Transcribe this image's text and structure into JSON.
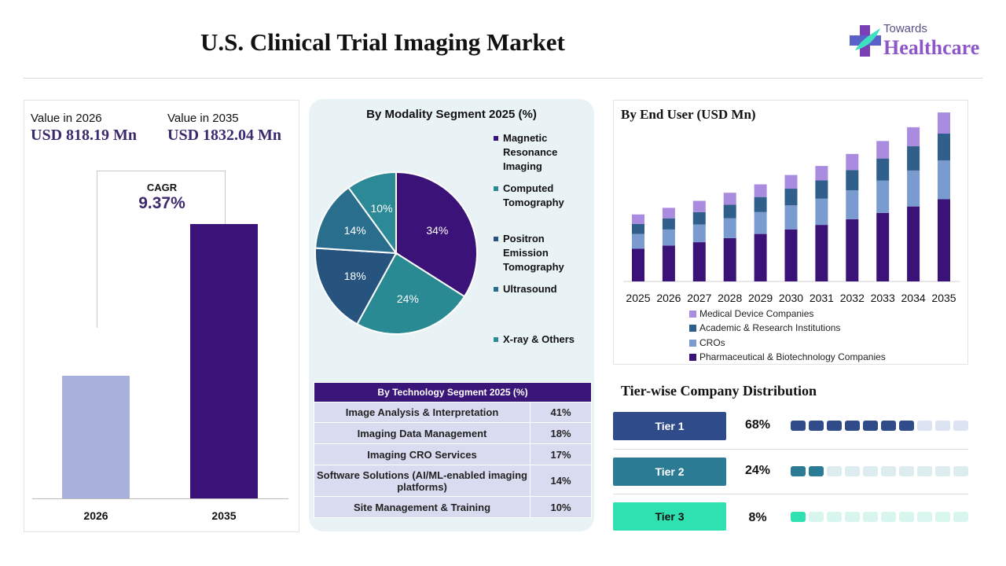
{
  "title": "U.S. Clinical Trial Imaging Market",
  "logo": {
    "small": "Towards",
    "big": "Healthcare"
  },
  "values": {
    "label_2026": "Value in 2026",
    "value_2026": "USD 818.19 Mn",
    "label_2035": "Value in 2035",
    "value_2035": "USD 1832.04 Mn",
    "cagr_label": "CAGR",
    "cagr_value": "9.37%"
  },
  "colors": {
    "bar_2026": "#a7b1dc",
    "bar_2035": "#3b1278",
    "pie": [
      "#3b1278",
      "#2a8a93",
      "#26547f",
      "#2a6e8e",
      "#2c8a96"
    ],
    "stack": {
      "pharma": "#3b1278",
      "cros": "#7a9bd0",
      "academic": "#2f5f8a",
      "device": "#a98be0"
    },
    "tier": [
      "#2f4b8a",
      "#2a7b93",
      "#2fe0b0"
    ],
    "tier_empty": [
      "#dce3f2",
      "#dcecef",
      "#d8f6ee"
    ],
    "table_header": "#3a1678",
    "table_cell": "#d9dcf0"
  },
  "chart_data": [
    {
      "type": "bar",
      "categories": [
        "2026",
        "2035"
      ],
      "values": [
        818.19,
        1832.04
      ],
      "ylim": [
        0,
        2100
      ]
    },
    {
      "type": "pie",
      "title": "By Modality Segment 2025 (%)",
      "labels": [
        "Magnetic Resonance Imaging",
        "Computed Tomography",
        "Positron Emission Tomography",
        "Ultrasound",
        "X-ray & Others"
      ],
      "values": [
        34,
        24,
        18,
        14,
        10
      ],
      "value_labels": [
        "34%",
        "24%",
        "18%",
        "14%",
        "10%"
      ]
    },
    {
      "type": "table",
      "title": "By Technology Segment 2025 (%)",
      "rows": [
        [
          "Image Analysis & Interpretation",
          "41%"
        ],
        [
          "Imaging Data Management",
          "18%"
        ],
        [
          "Imaging CRO Services",
          "17%"
        ],
        [
          "Software Solutions (AI/ML-enabled imaging platforms)",
          "14%"
        ],
        [
          "Site Management & Training",
          "10%"
        ]
      ]
    },
    {
      "type": "bar",
      "stacked": true,
      "title": "By End User (USD Mn)",
      "categories": [
        "2025",
        "2026",
        "2027",
        "2028",
        "2029",
        "2030",
        "2031",
        "2032",
        "2033",
        "2034",
        "2035"
      ],
      "series": [
        {
          "name": "Pharmaceutical & Biotechnology Companies",
          "values": [
            336,
            370,
            404,
            446,
            489,
            536,
            582,
            640,
            706,
            772,
            846
          ]
        },
        {
          "name": "CROs",
          "values": [
            152,
            165,
            182,
            204,
            225,
            247,
            270,
            298,
            332,
            370,
            400
          ]
        },
        {
          "name": "Academic & Research Institutions",
          "values": [
            105,
            115,
            128,
            140,
            155,
            172,
            188,
            209,
            228,
            250,
            276
          ]
        },
        {
          "name": "Medical Device Companies",
          "values": [
            97,
            108,
            116,
            123,
            131,
            141,
            149,
            166,
            180,
            196,
            218
          ]
        }
      ],
      "legend": [
        "Medical Device Companies",
        "Academic & Research Institutions",
        "CROs",
        "Pharmaceutical & Biotechnology Companies"
      ],
      "legend_position": "bottom",
      "ylim": [
        0,
        1700
      ]
    }
  ],
  "tiers": {
    "title": "Tier-wise Company Distribution",
    "items": [
      {
        "label": "Tier 1",
        "pct": "68%",
        "value": 68
      },
      {
        "label": "Tier 2",
        "pct": "24%",
        "value": 24
      },
      {
        "label": "Tier 3",
        "pct": "8%",
        "value": 8
      }
    ]
  }
}
